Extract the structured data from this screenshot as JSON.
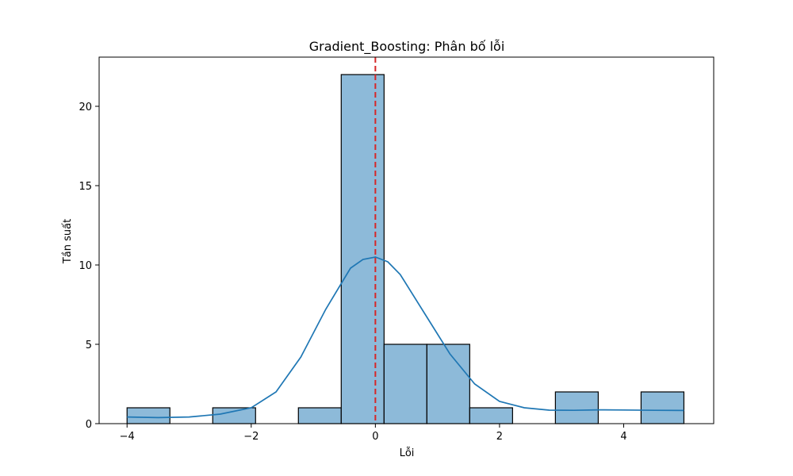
{
  "chart_data": {
    "type": "bar",
    "title": "Gradient_Boosting: Phân bố lỗi",
    "xlabel": "Lỗi",
    "ylabel": "Tần suất",
    "xlim": [
      -4.45,
      5.45
    ],
    "ylim": [
      0,
      23.1
    ],
    "xticks": [
      -4,
      -2,
      0,
      2,
      4
    ],
    "xtick_labels": [
      "−4",
      "−2",
      "0",
      "2",
      "4"
    ],
    "yticks": [
      0,
      5,
      10,
      15,
      20
    ],
    "ytick_labels": [
      "0",
      "5",
      "10",
      "15",
      "20"
    ],
    "bins": [
      {
        "x0": -4.0,
        "x1": -3.31,
        "count": 1
      },
      {
        "x0": -3.31,
        "x1": -2.62,
        "count": 0
      },
      {
        "x0": -2.62,
        "x1": -1.93,
        "count": 1
      },
      {
        "x0": -1.93,
        "x1": -1.24,
        "count": 0
      },
      {
        "x0": -1.24,
        "x1": -0.55,
        "count": 1
      },
      {
        "x0": -0.55,
        "x1": 0.14,
        "count": 22
      },
      {
        "x0": 0.14,
        "x1": 0.83,
        "count": 5
      },
      {
        "x0": 0.83,
        "x1": 1.52,
        "count": 5
      },
      {
        "x0": 1.52,
        "x1": 2.21,
        "count": 1
      },
      {
        "x0": 2.21,
        "x1": 2.9,
        "count": 0
      },
      {
        "x0": 2.9,
        "x1": 3.59,
        "count": 2
      },
      {
        "x0": 3.59,
        "x1": 4.28,
        "count": 0
      },
      {
        "x0": 4.28,
        "x1": 4.97,
        "count": 2
      }
    ],
    "kde": {
      "x": [
        -4.0,
        -3.5,
        -3.0,
        -2.5,
        -2.0,
        -1.6,
        -1.2,
        -0.8,
        -0.4,
        -0.2,
        0.0,
        0.2,
        0.4,
        0.8,
        1.2,
        1.6,
        2.0,
        2.4,
        2.8,
        3.2,
        3.6,
        4.0,
        4.5,
        4.97
      ],
      "y": [
        0.42,
        0.38,
        0.42,
        0.6,
        1.0,
        2.0,
        4.2,
        7.2,
        9.8,
        10.35,
        10.5,
        10.2,
        9.4,
        6.9,
        4.4,
        2.5,
        1.4,
        1.0,
        0.85,
        0.84,
        0.87,
        0.86,
        0.84,
        0.83
      ]
    },
    "vline": {
      "x": 0,
      "style": "dashed",
      "color": "#d62728"
    },
    "colors": {
      "bar_fill": "#8dbad9",
      "bar_edge": "#000000",
      "kde": "#1f77b4"
    },
    "grid": false,
    "legend": "none"
  }
}
